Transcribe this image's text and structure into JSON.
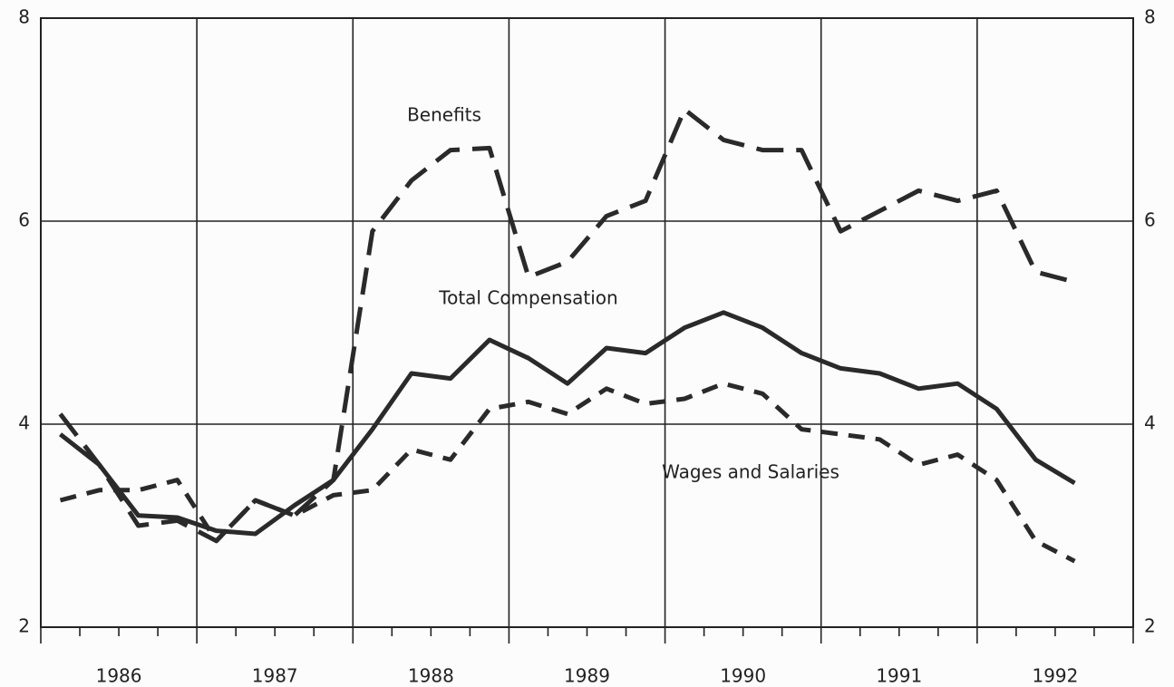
{
  "chart_data": {
    "type": "line",
    "x": [
      1986.125,
      1986.375,
      1986.625,
      1986.875,
      1987.125,
      1987.375,
      1987.625,
      1987.875,
      1988.125,
      1988.375,
      1988.625,
      1988.875,
      1989.125,
      1989.375,
      1989.625,
      1989.875,
      1990.125,
      1990.375,
      1990.625,
      1990.875,
      1991.125,
      1991.375,
      1991.625,
      1991.875,
      1992.125,
      1992.375,
      1992.625
    ],
    "series": [
      {
        "name": "Benefits",
        "color": "#2a2a2a",
        "dash": "long",
        "values": [
          4.1,
          3.6,
          3.0,
          3.05,
          2.85,
          3.25,
          3.1,
          3.45,
          5.9,
          6.4,
          6.7,
          6.72,
          5.45,
          5.6,
          6.05,
          6.2,
          7.1,
          6.8,
          6.7,
          6.7,
          5.9,
          6.1,
          6.3,
          6.2,
          6.3,
          5.5,
          5.4
        ]
      },
      {
        "name": "Total Compensation",
        "color": "#2a2a2a",
        "dash": "solid",
        "values": [
          3.9,
          3.6,
          3.1,
          3.08,
          2.95,
          2.92,
          3.2,
          3.45,
          3.95,
          4.5,
          4.45,
          4.83,
          4.65,
          4.4,
          4.75,
          4.7,
          4.95,
          5.1,
          4.95,
          4.7,
          4.55,
          4.5,
          4.35,
          4.4,
          4.15,
          3.65,
          3.42
        ]
      },
      {
        "name": "Wages and Salaries",
        "color": "#2a2a2a",
        "dash": "short",
        "values": [
          3.25,
          3.35,
          3.35,
          3.45,
          2.85,
          3.25,
          3.1,
          3.3,
          3.35,
          3.75,
          3.65,
          4.15,
          4.22,
          4.1,
          4.35,
          4.2,
          4.25,
          4.4,
          4.3,
          3.95,
          3.9,
          3.85,
          3.6,
          3.7,
          3.45,
          2.85,
          2.65
        ]
      }
    ],
    "xlim": [
      1986,
      1993
    ],
    "xticks": [
      {
        "value": 1986.5,
        "label": "1986"
      },
      {
        "value": 1987.5,
        "label": "1987"
      },
      {
        "value": 1988.5,
        "label": "1988"
      },
      {
        "value": 1989.5,
        "label": "1989"
      },
      {
        "value": 1990.5,
        "label": "1990"
      },
      {
        "value": 1991.5,
        "label": "1991"
      },
      {
        "value": 1992.5,
        "label": "1992"
      }
    ],
    "ylim": [
      2,
      8
    ],
    "yticks": [
      2,
      4,
      6,
      8
    ],
    "grid": true
  }
}
